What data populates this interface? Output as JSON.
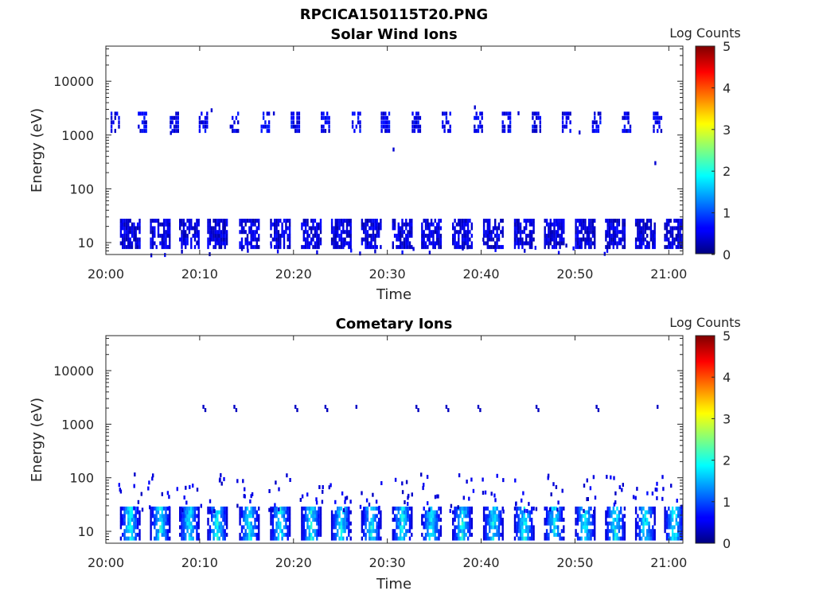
{
  "figure": {
    "title": "RPCICA150115T20.PNG"
  },
  "chart_data": [
    {
      "type": "heatmap",
      "title": "Solar Wind Ions",
      "xlabel": "Time",
      "ylabel": "Energy (eV)",
      "x_ticks": [
        "20:00",
        "20:10",
        "20:20",
        "20:30",
        "20:40",
        "20:50",
        "21:00"
      ],
      "y_scale": "log",
      "y_ticks": [
        "10",
        "100",
        "1000",
        "10000"
      ],
      "ylim": [
        6,
        45000
      ],
      "colorbar": {
        "label": "Log Counts",
        "ticks": [
          "0",
          "1",
          "2",
          "3",
          "4",
          "5"
        ],
        "range": [
          0,
          5
        ],
        "colormap": "jet"
      },
      "low_band_centers_min": [
        2.5,
        5.7,
        8.8,
        11.8,
        15.2,
        18.5,
        21.8,
        25.0,
        28.2,
        31.5,
        34.6,
        37.9,
        41.2,
        44.5,
        47.7,
        51.0,
        54.2,
        57.4,
        60.5
      ],
      "low_band_energy_ev": [
        9,
        28
      ],
      "high_band_centers_min": [
        0.9,
        3.8,
        7.2,
        10.3,
        13.6,
        16.9,
        20.1,
        23.3,
        26.6,
        29.7,
        33.0,
        36.2,
        39.6,
        42.6,
        45.8,
        49.0,
        52.2,
        55.4,
        58.7
      ],
      "high_band_energy_ev": [
        1300,
        3000
      ]
    },
    {
      "type": "heatmap",
      "title": "Cometary Ions",
      "xlabel": "Time",
      "ylabel": "Energy (eV)",
      "x_ticks": [
        "20:00",
        "20:10",
        "20:20",
        "20:30",
        "20:40",
        "20:50",
        "21:00"
      ],
      "y_scale": "log",
      "y_ticks": [
        "10",
        "100",
        "1000",
        "10000"
      ],
      "ylim": [
        6,
        45000
      ],
      "colorbar": {
        "label": "Log Counts",
        "ticks": [
          "0",
          "1",
          "2",
          "3",
          "4",
          "5"
        ],
        "range": [
          0,
          5
        ],
        "colormap": "jet"
      },
      "low_band_centers_min": [
        2.5,
        5.7,
        8.8,
        11.8,
        15.2,
        18.5,
        21.8,
        25.0,
        28.2,
        31.5,
        34.6,
        37.9,
        41.2,
        44.5,
        47.7,
        51.0,
        54.2,
        57.4,
        60.5
      ],
      "low_band_energy_ev": [
        8,
        30
      ],
      "peak_log_counts": 2.2
    }
  ]
}
